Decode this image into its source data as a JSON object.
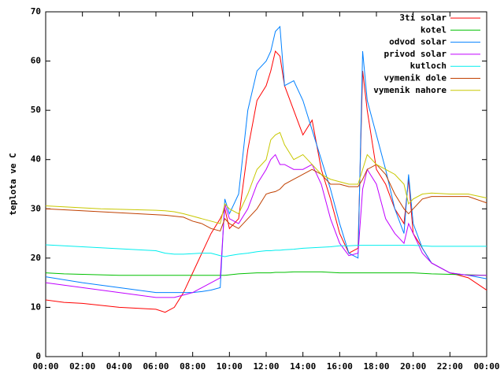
{
  "chart_data": {
    "type": "line",
    "ylabel": "teplota ve C",
    "xlim": [
      0,
      24
    ],
    "xticks": [
      {
        "value": 0,
        "label": "00:00"
      },
      {
        "value": 2,
        "label": "02:00"
      },
      {
        "value": 4,
        "label": "04:00"
      },
      {
        "value": 6,
        "label": "06:00"
      },
      {
        "value": 8,
        "label": "08:00"
      },
      {
        "value": 10,
        "label": "10:00"
      },
      {
        "value": 12,
        "label": "12:00"
      },
      {
        "value": 14,
        "label": "14:00"
      },
      {
        "value": 16,
        "label": "16:00"
      },
      {
        "value": 18,
        "label": "18:00"
      },
      {
        "value": 20,
        "label": "20:00"
      },
      {
        "value": 22,
        "label": "22:00"
      },
      {
        "value": 24,
        "label": "00:00"
      }
    ],
    "ylim": [
      0,
      70
    ],
    "yticks": [
      0,
      10,
      20,
      30,
      40,
      50,
      60,
      70
    ],
    "grid": false,
    "legend": "top right",
    "x": [
      0,
      1,
      2,
      3,
      4,
      5,
      6,
      6.5,
      7,
      7.5,
      8,
      8.5,
      9,
      9.5,
      9.75,
      10,
      10.5,
      11,
      11.5,
      12,
      12.25,
      12.5,
      12.75,
      13,
      13.5,
      14,
      14.5,
      15,
      15.5,
      16,
      16.5,
      17,
      17.25,
      17.5,
      18,
      18.5,
      19,
      19.5,
      19.75,
      20,
      20.5,
      21,
      22,
      23,
      24
    ],
    "series": [
      {
        "name": "3ti solar",
        "color": "#ff0000",
        "values": [
          11.5,
          11,
          10.8,
          10.4,
          10,
          9.8,
          9.6,
          9,
          10,
          13,
          17,
          21,
          25,
          28,
          30,
          26,
          28,
          42,
          52,
          55,
          58,
          62,
          61,
          55,
          50,
          45,
          48,
          38,
          32,
          25,
          21,
          22,
          58,
          50,
          38,
          35,
          30,
          27,
          36,
          25,
          22,
          19,
          17,
          16,
          13.5
        ]
      },
      {
        "name": "kotel",
        "color": "#00c000",
        "values": [
          17,
          16.8,
          16.7,
          16.6,
          16.5,
          16.5,
          16.5,
          16.5,
          16.5,
          16.5,
          16.5,
          16.5,
          16.5,
          16.5,
          16.5,
          16.6,
          16.8,
          16.9,
          17,
          17,
          17,
          17.1,
          17.1,
          17.1,
          17.2,
          17.2,
          17.2,
          17.2,
          17.1,
          17,
          17,
          17,
          17,
          17,
          17,
          17,
          17,
          17,
          17,
          17,
          16.9,
          16.8,
          16.7,
          16.6,
          16.5
        ]
      },
      {
        "name": "odvod solar",
        "color": "#0080ff",
        "values": [
          16.2,
          15.6,
          15,
          14.5,
          14,
          13.5,
          13,
          13,
          13,
          13,
          13,
          13.2,
          13.5,
          14,
          32,
          29,
          33,
          50,
          58,
          60,
          62,
          66,
          67,
          55,
          56,
          52,
          46,
          40,
          34,
          27,
          21,
          20,
          62,
          52,
          45,
          38,
          30,
          25,
          37,
          27,
          22,
          19,
          17,
          16.5,
          15.8
        ]
      },
      {
        "name": "privod solar",
        "color": "#c000ff",
        "values": [
          15,
          14.5,
          14,
          13.5,
          13,
          12.5,
          12,
          12,
          12,
          12.5,
          13,
          14,
          15,
          16,
          31,
          28,
          27,
          30,
          35,
          38,
          40,
          41,
          39,
          39,
          38,
          38,
          39,
          35,
          28,
          23,
          20.5,
          21,
          34,
          38,
          35,
          28,
          25,
          23,
          27,
          25,
          21,
          19,
          17,
          16.5,
          16.5
        ]
      },
      {
        "name": "kutloch",
        "color": "#00eeee",
        "values": [
          22.7,
          22.5,
          22.3,
          22.1,
          21.9,
          21.7,
          21.5,
          21,
          20.8,
          20.8,
          20.9,
          21,
          21,
          20.5,
          20.3,
          20.5,
          20.8,
          21,
          21.3,
          21.5,
          21.5,
          21.6,
          21.6,
          21.7,
          21.8,
          22,
          22.1,
          22.2,
          22.3,
          22.5,
          22.5,
          22.6,
          22.6,
          22.6,
          22.6,
          22.6,
          22.6,
          22.6,
          22.6,
          22.6,
          22.5,
          22.4,
          22.4,
          22.4,
          22.4
        ]
      },
      {
        "name": "vymenik dole",
        "color": "#c04000",
        "values": [
          30,
          29.8,
          29.6,
          29.4,
          29.2,
          29,
          28.8,
          28.7,
          28.5,
          28.3,
          27.5,
          27,
          26,
          25.5,
          28,
          27,
          26,
          28,
          30,
          33,
          33.3,
          33.5,
          34,
          35,
          36,
          37,
          38,
          37,
          35,
          35,
          34.5,
          34.5,
          36,
          38,
          39,
          37,
          33,
          30,
          29,
          30,
          32,
          32.5,
          32.5,
          32.5,
          31.2
        ]
      },
      {
        "name": "vymenik nahore",
        "color": "#c8c800",
        "values": [
          30.6,
          30.4,
          30.2,
          30,
          29.9,
          29.8,
          29.7,
          29.6,
          29.4,
          29,
          28.5,
          28,
          27.5,
          27,
          31,
          30,
          29,
          33,
          38,
          40,
          44,
          45,
          45.5,
          43,
          40,
          41,
          39,
          37,
          36,
          35.5,
          35,
          35,
          38,
          41,
          39,
          38,
          37,
          35,
          31,
          32,
          33,
          33.2,
          33,
          33,
          32.2
        ]
      }
    ]
  }
}
